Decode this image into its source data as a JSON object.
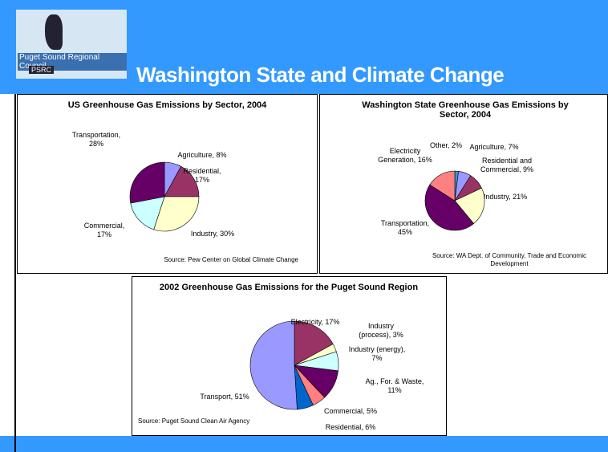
{
  "header": {
    "title": "Washington State and Climate Change",
    "logo": "Puget Sound Regional Council",
    "logo_short": "PSRC"
  },
  "chart_data": [
    {
      "type": "pie",
      "title": "US Greenhouse Gas Emissions by Sector, 2004",
      "categories": [
        "Agriculture",
        "Residential",
        "Industry",
        "Commercial",
        "Transportation"
      ],
      "values": [
        8,
        17,
        30,
        17,
        28
      ],
      "value_labels": [
        "Agriculture, 8%",
        "Residential,\n17%",
        "Industry, 30%",
        "Commercial,\n17%",
        "Transportation,\n28%"
      ],
      "colors": [
        "#9999ff",
        "#993366",
        "#ffffcc",
        "#ccffff",
        "#660066"
      ],
      "source": "Source: Pew Center on Global Climate Change"
    },
    {
      "type": "pie",
      "title": "Washington State Greenhouse Gas Emissions by Sector, 2004",
      "categories": [
        "Other",
        "Agriculture",
        "Residential and Commercial",
        "Industry",
        "Transportation",
        "Electricity Generation"
      ],
      "values": [
        2,
        7,
        9,
        21,
        45,
        16
      ],
      "value_labels": [
        "Other, 2%",
        "Agriculture, 7%",
        "Residential and\nCommercial, 9%",
        "Industry, 21%",
        "Transportation,\n45%",
        "Electricity\nGeneration, 16%"
      ],
      "colors": [
        "#3399cc",
        "#9999ff",
        "#993366",
        "#ffffcc",
        "#660066",
        "#ff8080"
      ],
      "source": "Source:  WA Dept. of Community, Trade and Economic\nDevelopment"
    },
    {
      "type": "pie",
      "title": "2002 Greenhouse Gas Emissions for the Puget Sound Region",
      "categories": [
        "Electricity",
        "Industry (process)",
        "Industry (energy)",
        "Ag., For. & Waste",
        "Commercial",
        "Residential",
        "Transport"
      ],
      "values": [
        17,
        3,
        7,
        11,
        5,
        6,
        51
      ],
      "value_labels": [
        "Electricity, 17%",
        "Industry\n(process), 3%",
        "Industry (energy),\n7%",
        "Ag., For. & Waste,\n11%",
        "Commercial, 5%",
        "Residential, 6%",
        "Transport, 51%"
      ],
      "colors": [
        "#993366",
        "#ffffcc",
        "#ccffff",
        "#660066",
        "#ff8080",
        "#0066cc",
        "#9999ff"
      ],
      "source": "Source: Puget Sound Clean Air Agency"
    }
  ]
}
